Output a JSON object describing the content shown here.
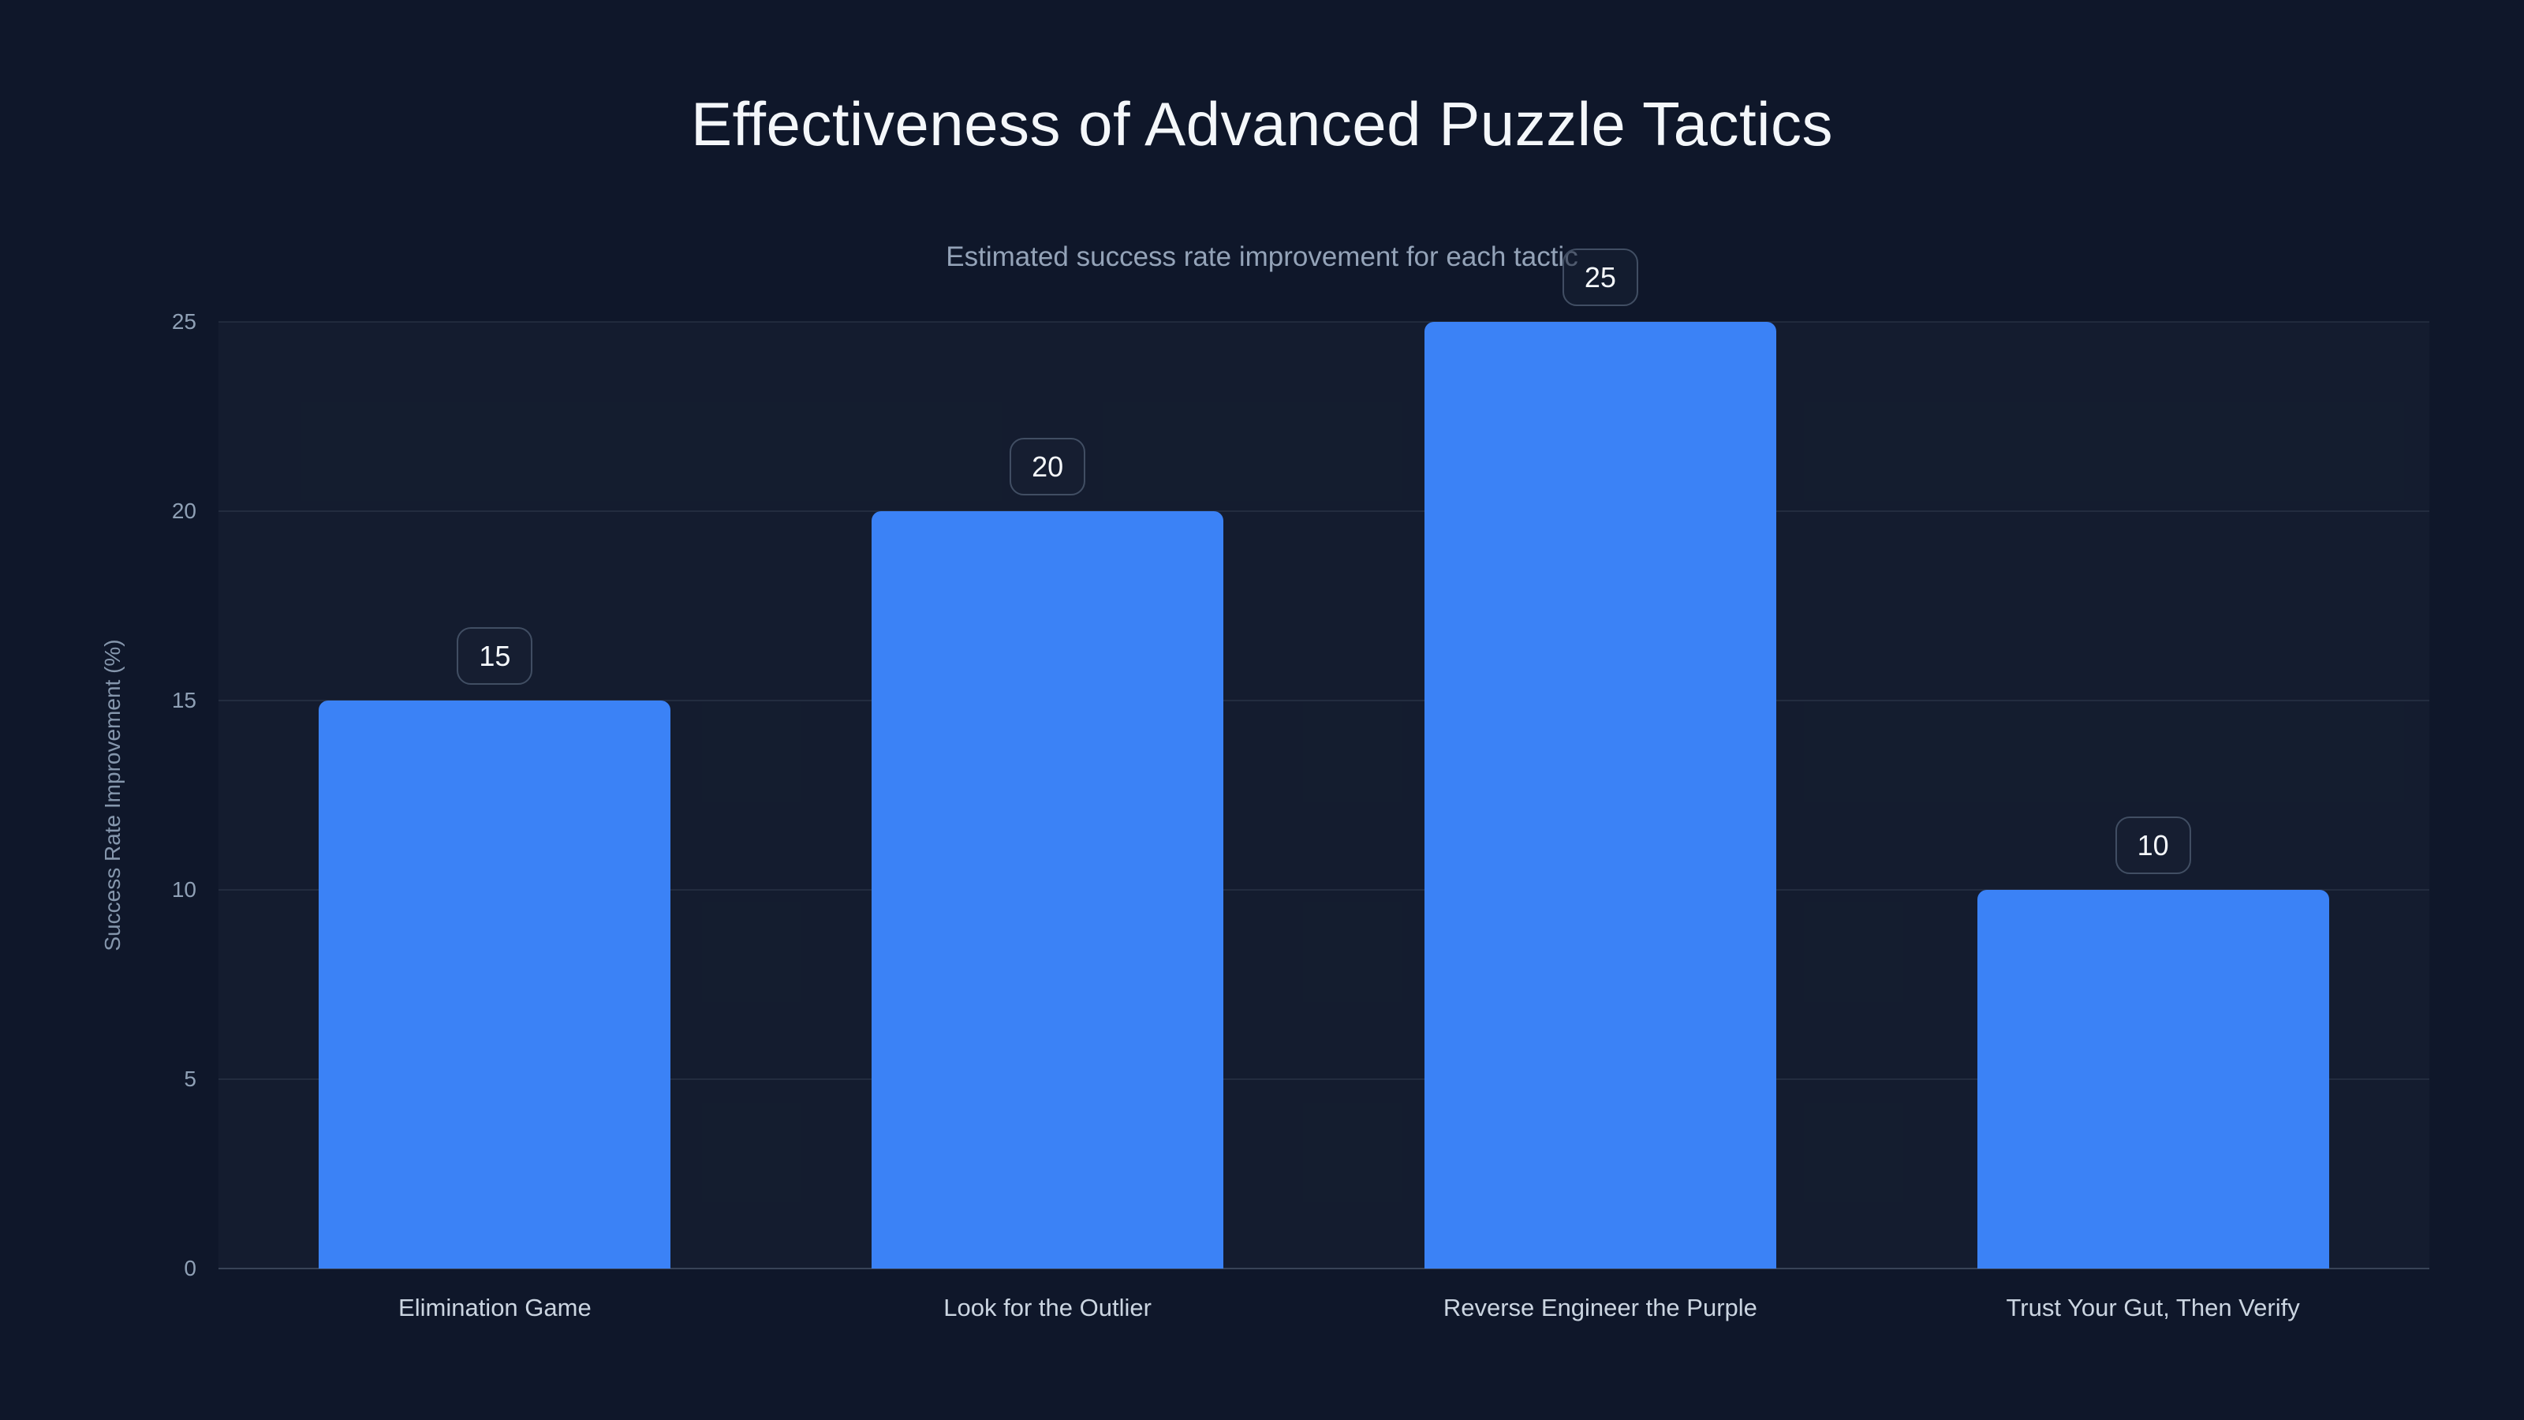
{
  "title": "Effectiveness of Advanced Puzzle Tactics",
  "subtitle": "Estimated success rate improvement for each tactic",
  "colors": {
    "background": "#0f172a",
    "bar": "#3b82f6",
    "title_text": "#f4f7fa",
    "subtitle_text": "#94a3b8",
    "tick_text": "#8fa0b5",
    "category_text": "#cbd5e1",
    "badge_border": "#414e63",
    "badge_text": "#f5f8fb",
    "gridline": "rgba(148,163,184,0.12)"
  },
  "chart_data": {
    "type": "bar",
    "title": "Effectiveness of Advanced Puzzle Tactics",
    "subtitle": "Estimated success rate improvement for each tactic",
    "categories": [
      "Elimination Game",
      "Look for the Outlier",
      "Reverse Engineer the Purple",
      "Trust Your Gut, Then Verify"
    ],
    "values": [
      15,
      20,
      25,
      10
    ],
    "value_labels": [
      "15",
      "20",
      "25",
      "10"
    ],
    "xlabel": "",
    "ylabel": "Success Rate Improvement (%)",
    "ylim": [
      0,
      25
    ],
    "yticks": [
      0,
      5,
      10,
      15,
      20,
      25
    ],
    "grid": true,
    "legend": false,
    "bar_color": "#3b82f6"
  }
}
